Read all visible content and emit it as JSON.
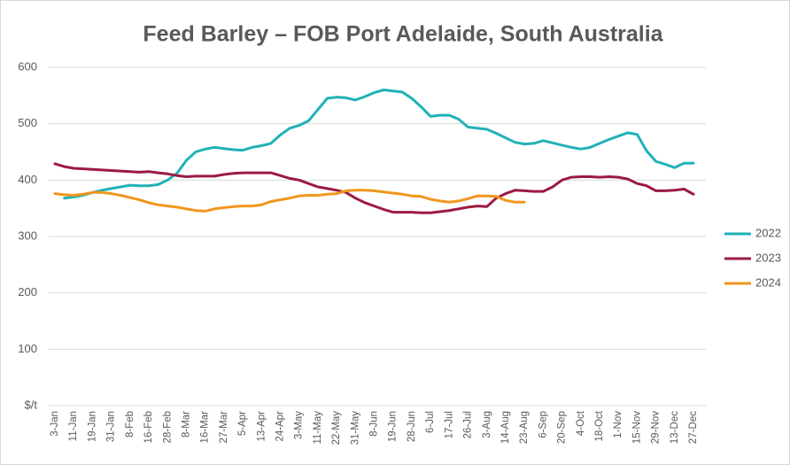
{
  "chart_data": {
    "type": "line",
    "title": "Feed Barley – FOB Port Adelaide, South Australia",
    "categories": [
      "3-Jan",
      null,
      "11-Jan",
      null,
      "19-Jan",
      null,
      "31-Jan",
      null,
      "8-Feb",
      null,
      "16-Feb",
      null,
      "28-Feb",
      null,
      "8-Mar",
      null,
      "16-Mar",
      null,
      "27-Mar",
      null,
      "5-Apr",
      null,
      "13-Apr",
      null,
      "24-Apr",
      null,
      "3-May",
      null,
      "11-May",
      null,
      "22-May",
      null,
      "31-May",
      null,
      "8-Jun",
      null,
      "19-Jun",
      null,
      "28-Jun",
      null,
      "6-Jul",
      null,
      "17-Jul",
      null,
      "26-Jul",
      null,
      "3-Aug",
      null,
      "14-Aug",
      null,
      "23-Aug",
      null,
      "6-Sep",
      null,
      "20-Sep",
      null,
      "4-Oct",
      null,
      "18-Oct",
      null,
      "1-Nov",
      null,
      "15-Nov",
      null,
      "29-Nov",
      null,
      "13-Dec",
      null,
      "27-Dec"
    ],
    "series": [
      {
        "name": "2022",
        "color": "#20b2b6",
        "values": [
          null,
          368,
          370,
          373,
          378,
          382,
          385,
          388,
          391,
          390,
          390,
          392,
          400,
          412,
          435,
          450,
          455,
          458,
          456,
          454,
          453,
          458,
          461,
          465,
          480,
          492,
          497,
          505,
          525,
          545,
          547,
          546,
          542,
          548,
          555,
          560,
          558,
          556,
          545,
          530,
          513,
          515,
          515,
          508,
          494,
          492,
          490,
          483,
          475,
          467,
          464,
          465,
          470,
          466,
          462,
          458,
          455,
          458,
          465,
          472,
          478,
          484,
          481,
          452,
          433,
          428,
          422,
          430,
          430
        ]
      },
      {
        "name": "2023",
        "color": "#9b1b40",
        "values": [
          429,
          424,
          421,
          420,
          419,
          418,
          417,
          416,
          415,
          414,
          415,
          413,
          411,
          408,
          406,
          407,
          407,
          407,
          410,
          412,
          413,
          413,
          413,
          413,
          408,
          403,
          400,
          394,
          388,
          385,
          382,
          378,
          368,
          360,
          354,
          348,
          343,
          343,
          343,
          342,
          342,
          344,
          346,
          349,
          352,
          354,
          353,
          368,
          376,
          382,
          381,
          380,
          380,
          388,
          400,
          405,
          406,
          406,
          405,
          406,
          405,
          402,
          394,
          390,
          381,
          381,
          382,
          384,
          375
        ]
      },
      {
        "name": "2024",
        "color": "#f0961e",
        "values": [
          376,
          374,
          373,
          375,
          378,
          378,
          376,
          373,
          369,
          365,
          360,
          356,
          354,
          352,
          349,
          346,
          345,
          349,
          351,
          353,
          354,
          354,
          356,
          362,
          365,
          368,
          372,
          373,
          373,
          375,
          376,
          381,
          382,
          382,
          381,
          379,
          377,
          375,
          372,
          371,
          366,
          363,
          361,
          363,
          367,
          372,
          372,
          371,
          364,
          361,
          361,
          null,
          null,
          null,
          null,
          null,
          null,
          null,
          null,
          null,
          null,
          null,
          null,
          null,
          null,
          null,
          null,
          null,
          null
        ]
      }
    ],
    "ylim": [
      0,
      600
    ],
    "yticks": [
      {
        "value": 0,
        "label": "$/t"
      },
      100,
      200,
      300,
      400,
      500,
      600
    ],
    "grid": true,
    "legend": "right"
  }
}
